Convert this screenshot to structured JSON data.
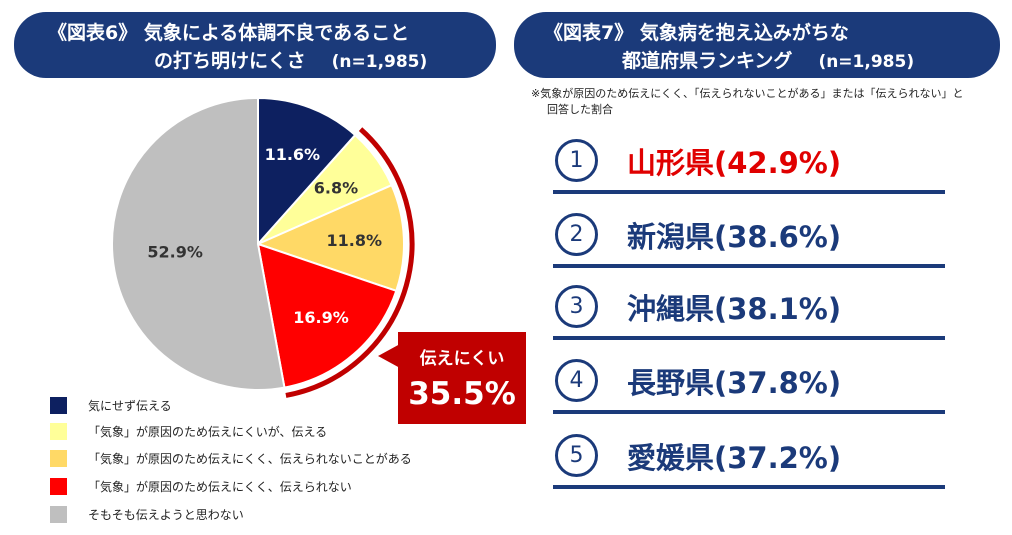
{
  "left_panel": {
    "title_line1": "《図表6》 気象による体調不良であること",
    "title_line2": "の打ち明けにくさ",
    "sample_size": "(n=1,985)"
  },
  "right_panel": {
    "title_line1": "《図表7》 気象病を抱え込みがちな",
    "title_line2": "都道府県ランキング",
    "sample_size": "(n=1,985)",
    "note_line1": "※気象が原因のため伝えにくく、「伝えられないことがある」または「伝えられない」と",
    "note_line2": "回答した割合",
    "ranking": [
      {
        "rank": "1",
        "text": "山形県(42.9%)",
        "color": "#e00000"
      },
      {
        "rank": "2",
        "text": "新潟県(38.6%)",
        "color": "#1b3a7a"
      },
      {
        "rank": "3",
        "text": "沖縄県(38.1%)",
        "color": "#1b3a7a"
      },
      {
        "rank": "4",
        "text": "長野県(37.8%)",
        "color": "#1b3a7a"
      },
      {
        "rank": "5",
        "text": "愛媛県(37.2%)",
        "color": "#1b3a7a"
      }
    ]
  },
  "callout": {
    "label": "伝えにくい",
    "value": "35.5%"
  },
  "chart_data": {
    "type": "pie",
    "start": "12 o'clock, clockwise",
    "slices": [
      {
        "label": "気にせず伝える",
        "value": 11.6,
        "display": "11.6%",
        "color": "#0d2060",
        "text_color": "#ffffff"
      },
      {
        "label": "「気象」が原因のため伝えにくいが、伝える",
        "value": 6.8,
        "display": "6.8%",
        "color": "#ffff99",
        "text_color": "#333333"
      },
      {
        "label": "「気象」が原因のため伝えにくく、伝えられないことがある",
        "value": 11.8,
        "display": "11.8%",
        "color": "#ffd966",
        "text_color": "#333333"
      },
      {
        "label": "「気象」が原因のため伝えにくく、伝えられない",
        "value": 16.9,
        "display": "16.9%",
        "color": "#ff0000",
        "text_color": "#ffffff"
      },
      {
        "label": "そもそも伝えようと思わない",
        "value": 52.9,
        "display": "52.9%",
        "color": "#bfbfbf",
        "text_color": "#333333"
      }
    ],
    "highlight_arc": {
      "from_slice": 1,
      "to_slice": 3,
      "color": "#c00000"
    }
  }
}
